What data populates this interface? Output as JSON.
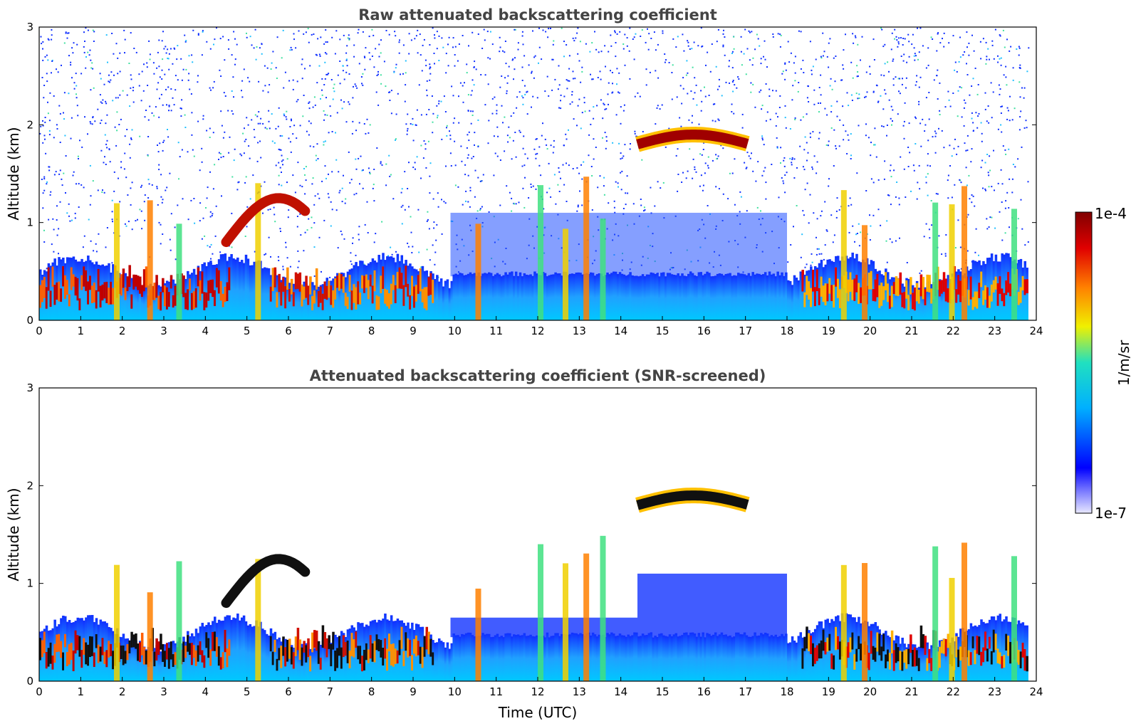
{
  "chart_data": [
    {
      "type": "heatmap",
      "title": "Raw attenuated backscattering coefficient",
      "xlabel": "",
      "ylabel": "Altitude (km)",
      "xlim": [
        0,
        24
      ],
      "ylim": [
        0,
        3
      ],
      "xticks": [
        "0",
        "1",
        "2",
        "3",
        "4",
        "5",
        "6",
        "7",
        "8",
        "9",
        "10",
        "11",
        "12",
        "13",
        "14",
        "15",
        "16",
        "17",
        "18",
        "19",
        "20",
        "21",
        "22",
        "23",
        "24"
      ],
      "yticks": [
        "0",
        "1",
        "2",
        "3"
      ],
      "features": [
        {
          "label": "Boundary layer aerosol/cloud",
          "x_range": [
            0,
            23.8
          ],
          "alt_km": [
            0,
            0.6
          ]
        },
        {
          "label": "Elevated cloud layer",
          "x_range": [
            14.4,
            17.1
          ],
          "alt_km": [
            1.75,
            1.95
          ]
        },
        {
          "label": "Rising cloud top",
          "x_range": [
            4.5,
            6.4
          ],
          "alt_km": [
            0.8,
            1.25
          ]
        }
      ]
    },
    {
      "type": "heatmap",
      "title": "Attenuated backscattering coefficient (SNR-screened)",
      "xlabel": "Time (UTC)",
      "ylabel": "Altitude (km)",
      "xlim": [
        0,
        24
      ],
      "ylim": [
        0,
        3
      ],
      "xticks": [
        "0",
        "1",
        "2",
        "3",
        "4",
        "5",
        "6",
        "7",
        "8",
        "9",
        "10",
        "11",
        "12",
        "13",
        "14",
        "15",
        "16",
        "17",
        "18",
        "19",
        "20",
        "21",
        "22",
        "23",
        "24"
      ],
      "yticks": [
        "0",
        "1",
        "2",
        "3"
      ],
      "features": [
        {
          "label": "Boundary layer aerosol/cloud",
          "x_range": [
            0,
            23.8
          ],
          "alt_km": [
            0,
            0.6
          ]
        },
        {
          "label": "Elevated cloud layer",
          "x_range": [
            14.4,
            17.1
          ],
          "alt_km": [
            1.75,
            1.95
          ]
        }
      ]
    }
  ],
  "colorbar": {
    "label": "1/m/sr",
    "max_label": "1e-4",
    "min_label": "1e-7",
    "range": [
      1e-07,
      0.0001
    ],
    "colormap": [
      "#e8e8ff",
      "#0000ff",
      "#00b0ff",
      "#20e0c0",
      "#f0f000",
      "#ff8000",
      "#e00000",
      "#800000"
    ]
  }
}
